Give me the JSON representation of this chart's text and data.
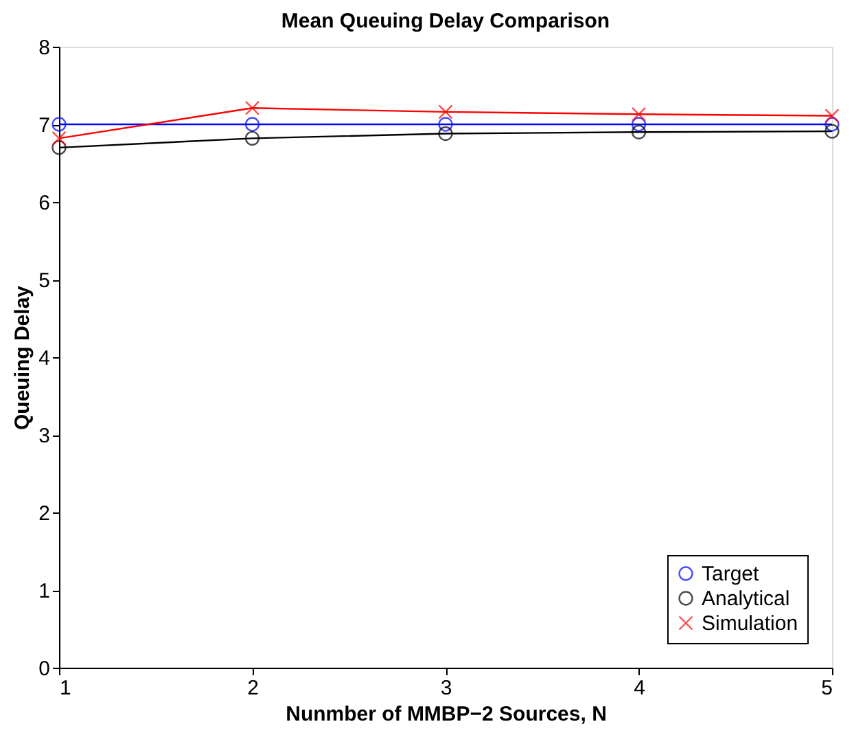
{
  "chart_data": {
    "type": "line",
    "title": "Mean Queuing Delay Comparison",
    "xlabel": "Nunmber of MMBP−2 Sources, N",
    "ylabel": "Queuing Delay",
    "x": [
      1,
      2,
      3,
      4,
      5
    ],
    "xlim": [
      1,
      5
    ],
    "xticks": [
      1,
      2,
      3,
      4,
      5
    ],
    "ylim": [
      0,
      8
    ],
    "yticks": [
      0,
      1,
      2,
      3,
      4,
      5,
      6,
      7,
      8
    ],
    "grid": false,
    "legend": "bottom right",
    "line_style": "solid",
    "series": [
      {
        "name": "Target",
        "color": "#0000ff",
        "marker": "circle",
        "values": [
          7,
          7,
          7,
          7,
          7
        ]
      },
      {
        "name": "Analytical",
        "color": "#000000",
        "marker": "circle",
        "values": [
          6.7,
          6.82,
          6.88,
          6.9,
          6.91
        ]
      },
      {
        "name": "Simulation",
        "color": "#ff0000",
        "marker": "cross",
        "values": [
          6.82,
          7.21,
          7.16,
          7.13,
          7.11
        ]
      }
    ]
  }
}
